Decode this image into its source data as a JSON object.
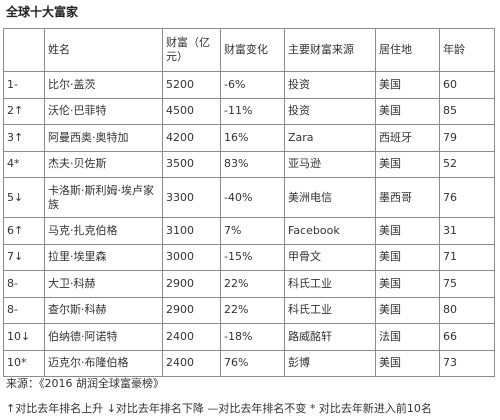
{
  "title": "全球十大富家",
  "table": {
    "headers": [
      "",
      "姓名",
      "财富（亿元）",
      "财富变化",
      "主要财富来源",
      "居住地",
      "年龄"
    ],
    "rows": [
      {
        "rank": "1-",
        "name": "比尔·盖茨",
        "wealth": "5200",
        "change": "-6%",
        "source": "投资",
        "residence": "美国",
        "age": "60"
      },
      {
        "rank": "2↑",
        "name": "沃伦·巴菲特",
        "wealth": "4500",
        "change": "-11%",
        "source": "投资",
        "residence": "美国",
        "age": "85"
      },
      {
        "rank": "3↑",
        "name": "阿曼西奥·奥特加",
        "wealth": "4200",
        "change": "16%",
        "source": "Zara",
        "residence": "西班牙",
        "age": "79"
      },
      {
        "rank": "4*",
        "name": "杰夫·贝佐斯",
        "wealth": "3500",
        "change": "83%",
        "source": "亚马逊",
        "residence": "美国",
        "age": "52"
      },
      {
        "rank": "5↓",
        "name": "卡洛斯·斯利姆·埃卢家族",
        "wealth": "3300",
        "change": "-40%",
        "source": "美洲电信",
        "residence": "墨西哥",
        "age": "76"
      },
      {
        "rank": "6↑",
        "name": "马克·扎克伯格",
        "wealth": "3100",
        "change": "7%",
        "source": "Facebook",
        "residence": "美国",
        "age": "31"
      },
      {
        "rank": "7↓",
        "name": "拉里·埃里森",
        "wealth": "3000",
        "change": "-15%",
        "source": "甲骨文",
        "residence": "美国",
        "age": "71"
      },
      {
        "rank": "8-",
        "name": "大卫·科赫",
        "wealth": "2900",
        "change": "22%",
        "source": "科氏工业",
        "residence": "美国",
        "age": "75"
      },
      {
        "rank": "8-",
        "name": "查尔斯·科赫",
        "wealth": "2900",
        "change": "22%",
        "source": "科氏工业",
        "residence": "美国",
        "age": "80"
      },
      {
        "rank": "10↓",
        "name": "伯纳德·阿诺特",
        "wealth": "2400",
        "change": "-18%",
        "source": "路威酩轩",
        "residence": "法国",
        "age": "66"
      },
      {
        "rank": "10*",
        "name": "迈克尔·布隆伯格",
        "wealth": "2400",
        "change": "76%",
        "source": "彭博",
        "residence": "美国",
        "age": "73"
      }
    ]
  },
  "source_note": "来源：《2016 胡润全球富豪榜》",
  "legend": "↑对比去年排名上升  ↓对比去年排名下降  —对比去年排名不变 * 对比去年新进入前10名"
}
